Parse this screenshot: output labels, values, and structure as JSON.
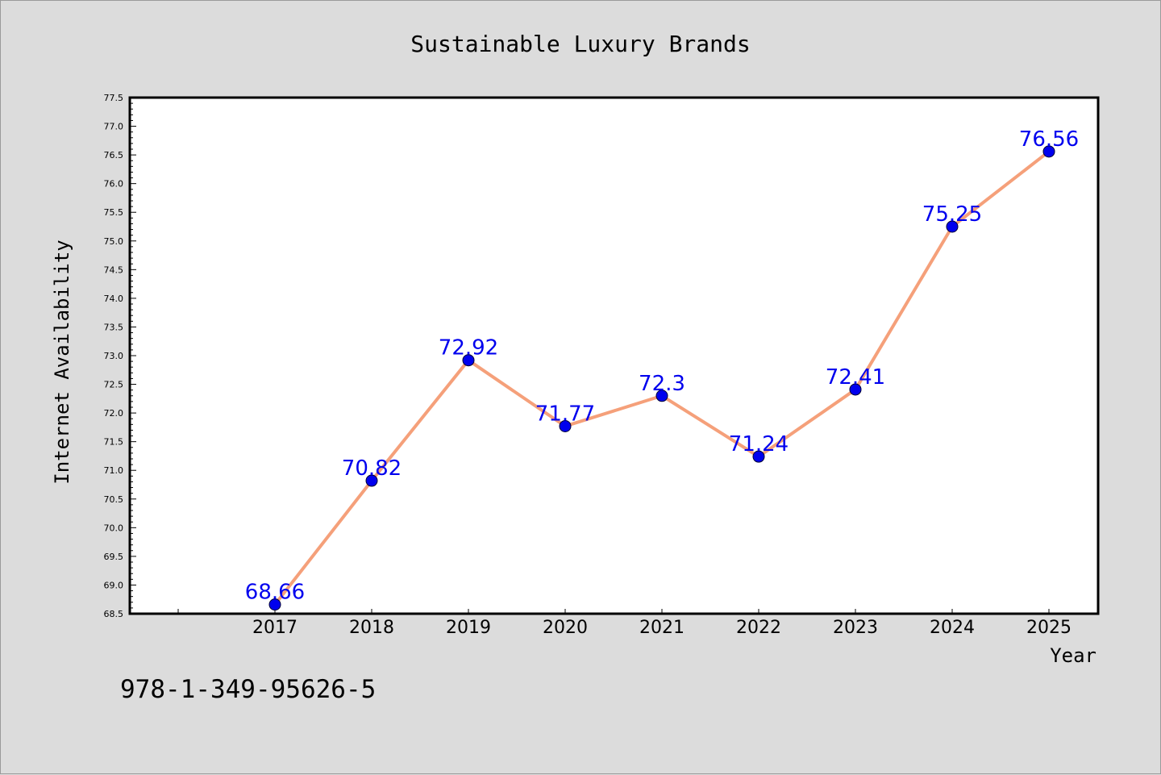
{
  "chart_data": {
    "type": "line",
    "title": "Sustainable Luxury Brands",
    "xlabel": "Year",
    "ylabel": "Internet Availability",
    "x": [
      "2017",
      "2018",
      "2019",
      "2020",
      "2021",
      "2022",
      "2023",
      "2024",
      "2025"
    ],
    "series": [
      {
        "values": [
          68.66,
          70.82,
          72.92,
          71.77,
          72.3,
          71.24,
          72.41,
          75.25,
          76.56
        ],
        "labels": [
          "68.66",
          "70.82",
          "72.92",
          "71.77",
          "72.3",
          "71.24",
          "72.41",
          "75.25",
          "76.56"
        ],
        "line_color": "#f5a07a",
        "marker_color": "#0000ee"
      }
    ],
    "ylim": [
      68.5,
      77.5
    ],
    "yticks": [
      "68.5",
      "69.0",
      "69.5",
      "70.0",
      "70.5",
      "71.0",
      "71.5",
      "72.0",
      "72.5",
      "73.0",
      "73.5",
      "74.0",
      "74.5",
      "75.0",
      "75.5",
      "76.0",
      "76.5",
      "77.0",
      "77.5"
    ],
    "grid": false,
    "label_color": "#0000ee"
  },
  "footer": {
    "code": "978-1-349-95626-5"
  }
}
